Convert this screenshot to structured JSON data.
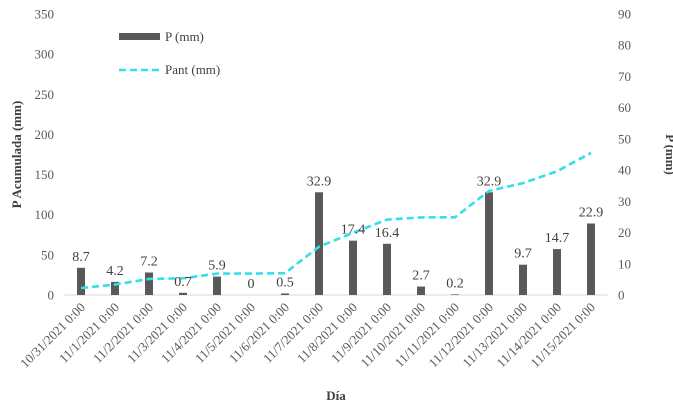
{
  "chart_data": {
    "type": "bar",
    "categories": [
      "10/31/2021 0:00",
      "11/1/2021 0:00",
      "11/2/2021 0:00",
      "11/3/2021 0:00",
      "11/4/2021 0:00",
      "11/5/2021 0:00",
      "11/6/2021 0:00",
      "11/7/2021 0:00",
      "11/8/2021 0:00",
      "11/9/2021 0:00",
      "11/10/2021 0:00",
      "11/11/2021 0:00",
      "11/12/2021 0:00",
      "11/13/2021 0:00",
      "11/14/2021 0:00",
      "11/15/2021 0:00"
    ],
    "series": [
      {
        "name": "P (mm)",
        "type": "bar",
        "axis": "right",
        "color": "#595959",
        "values": [
          8.7,
          4.2,
          7.2,
          0.7,
          5.9,
          0,
          0.5,
          32.9,
          17.4,
          16.4,
          2.7,
          0.2,
          32.9,
          9.7,
          14.7,
          22.9
        ],
        "labels": [
          "8.7",
          "4.2",
          "7.2",
          "0.7",
          "5.9",
          "0",
          "0.5",
          "32.9",
          "17.4",
          "16.4",
          "2.7",
          "0.2",
          "32.9",
          "9.7",
          "14.7",
          "22.9"
        ]
      },
      {
        "name": "Pant (mm)",
        "type": "line",
        "axis": "left",
        "color": "#33E0E8",
        "dashed": true,
        "values": [
          8.7,
          12.9,
          20.1,
          20.8,
          26.7,
          26.7,
          27.2,
          60.1,
          77.5,
          93.9,
          96.6,
          96.8,
          129.7,
          139.4,
          154.1,
          177.0
        ]
      }
    ],
    "xlabel": "Día",
    "ylabel": "P Acumulada (mm)",
    "y2label": "P (mm)",
    "ylim": [
      0,
      350
    ],
    "yticks": [
      "0",
      "50",
      "100",
      "150",
      "200",
      "250",
      "300",
      "350"
    ],
    "y2lim": [
      0,
      90
    ],
    "y2ticks": [
      "0",
      "10",
      "20",
      "30",
      "40",
      "50",
      "60",
      "70",
      "80",
      "90"
    ],
    "grid": false,
    "legend_position": "top-left"
  }
}
